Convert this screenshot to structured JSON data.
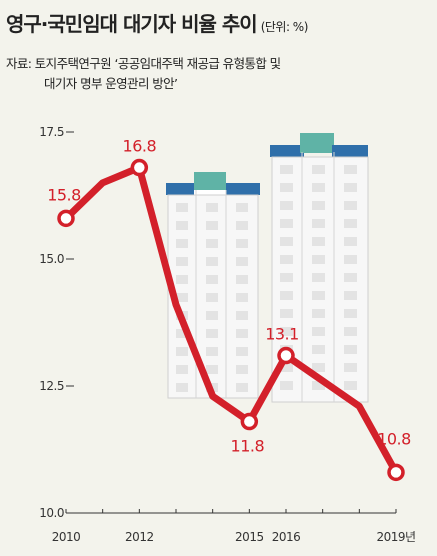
{
  "header": {
    "title": "영구·국민임대 대기자 비율 추이",
    "unit": "(단위: %)"
  },
  "source": {
    "line1": "자료: 토지주택연구원 ‘공공임대주택 재공급 유형통합 및",
    "line2": "대기자 명부 운영관리 방안’"
  },
  "chart_data": {
    "type": "line",
    "title": "영구·국민임대 대기자 비율 추이",
    "unit": "%",
    "x": [
      2010,
      2011,
      2012,
      2013,
      2014,
      2015,
      2016,
      2017,
      2018,
      2019
    ],
    "x_tick_labels": [
      {
        "x": 2010,
        "label": "2010"
      },
      {
        "x": 2012,
        "label": "2012"
      },
      {
        "x": 2015,
        "label": "2015"
      },
      {
        "x": 2016,
        "label": "2016"
      },
      {
        "x": 2019,
        "label": "2019년"
      }
    ],
    "series": [
      {
        "values": [
          15.8,
          16.5,
          16.8,
          14.1,
          12.3,
          11.8,
          13.1,
          12.6,
          12.1,
          10.8
        ]
      }
    ],
    "data_labels": [
      {
        "x": 2010,
        "value": 15.8,
        "label": "15.8"
      },
      {
        "x": 2012,
        "value": 16.8,
        "label": "16.8"
      },
      {
        "x": 2015,
        "value": 11.8,
        "label": "11.8"
      },
      {
        "x": 2016,
        "value": 13.1,
        "label": "13.1"
      },
      {
        "x": 2019,
        "value": 10.8,
        "label": "10.8"
      }
    ],
    "y_ticks": [
      {
        "value": 17.5,
        "label": "17.5"
      },
      {
        "value": 15.0,
        "label": "15.0"
      },
      {
        "value": 12.5,
        "label": "12.5"
      },
      {
        "value": 10.0,
        "label": "10.0"
      }
    ],
    "ylim": [
      10.0,
      17.5
    ],
    "xlim": [
      2010,
      2019
    ],
    "grid": false,
    "line_color": "#d3202a"
  }
}
